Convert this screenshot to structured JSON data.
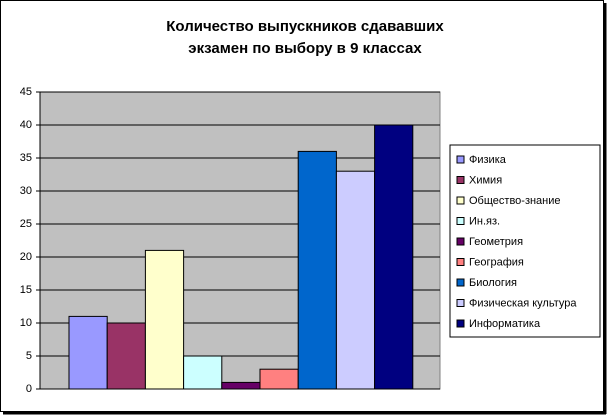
{
  "chart_data": {
    "type": "bar",
    "title": "Количество выпускников сдававших экзамен по выбору в 9 классах",
    "series": [
      {
        "name": "Физика",
        "color": "#9999ff",
        "values": [
          11
        ]
      },
      {
        "name": "Химия",
        "color": "#993366",
        "values": [
          10
        ]
      },
      {
        "name": "Общество-знание",
        "color": "#ffffcc",
        "values": [
          21
        ]
      },
      {
        "name": "Ин.яз.",
        "color": "#ccffff",
        "values": [
          5
        ]
      },
      {
        "name": "Геометрия",
        "color": "#660066",
        "values": [
          1
        ]
      },
      {
        "name": "География",
        "color": "#ff8080",
        "values": [
          3
        ]
      },
      {
        "name": "Биология",
        "color": "#0066cc",
        "values": [
          36
        ]
      },
      {
        "name": "Физическая культура",
        "color": "#ccccff",
        "values": [
          33
        ]
      },
      {
        "name": "Информатика",
        "color": "#000080",
        "values": [
          40
        ]
      }
    ],
    "ylim": [
      0,
      45
    ],
    "yticks": [
      0,
      5,
      10,
      15,
      20,
      25,
      30,
      35,
      40,
      45
    ],
    "grid": true,
    "legend": "right",
    "plot_background": "#c0c0c0"
  }
}
